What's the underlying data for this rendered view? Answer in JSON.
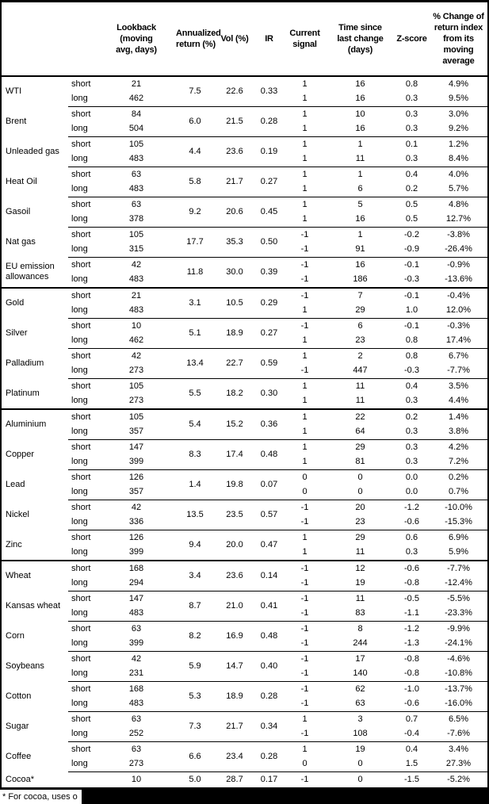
{
  "table": {
    "header": {
      "name": "",
      "pos": "",
      "lookback": "Lookback\n(moving\navg, days)",
      "annualized": "Annualized\nreturn (%)",
      "vol": "Vol (%)",
      "ir": "IR",
      "signal": "Current\nsignal",
      "time": "Time since\nlast change\n(days)",
      "zscore": "Z-score",
      "pct_change": "% Change of\nreturn index\nfrom its\nmoving\naverage"
    },
    "commodities": [
      {
        "name": "WTI",
        "section_start": false,
        "annualized": "7.5",
        "vol": "22.6",
        "ir": "0.33",
        "rows": [
          {
            "pos": "short",
            "lookback": "21",
            "signal": "1",
            "time": "16",
            "zscore": "0.8",
            "pct": "4.9%"
          },
          {
            "pos": "long",
            "lookback": "462",
            "signal": "1",
            "time": "16",
            "zscore": "0.3",
            "pct": "9.5%"
          }
        ]
      },
      {
        "name": "Brent",
        "section_start": false,
        "annualized": "6.0",
        "vol": "21.5",
        "ir": "0.28",
        "rows": [
          {
            "pos": "short",
            "lookback": "84",
            "signal": "1",
            "time": "10",
            "zscore": "0.3",
            "pct": "3.0%"
          },
          {
            "pos": "long",
            "lookback": "504",
            "signal": "1",
            "time": "16",
            "zscore": "0.3",
            "pct": "9.2%"
          }
        ]
      },
      {
        "name": "Unleaded gas",
        "section_start": false,
        "annualized": "4.4",
        "vol": "23.6",
        "ir": "0.19",
        "rows": [
          {
            "pos": "short",
            "lookback": "105",
            "signal": "1",
            "time": "1",
            "zscore": "0.1",
            "pct": "1.2%"
          },
          {
            "pos": "long",
            "lookback": "483",
            "signal": "1",
            "time": "11",
            "zscore": "0.3",
            "pct": "8.4%"
          }
        ]
      },
      {
        "name": "Heat Oil",
        "section_start": false,
        "annualized": "5.8",
        "vol": "21.7",
        "ir": "0.27",
        "rows": [
          {
            "pos": "short",
            "lookback": "63",
            "signal": "1",
            "time": "1",
            "zscore": "0.4",
            "pct": "4.0%"
          },
          {
            "pos": "long",
            "lookback": "483",
            "signal": "1",
            "time": "6",
            "zscore": "0.2",
            "pct": "5.7%"
          }
        ]
      },
      {
        "name": "Gasoil",
        "section_start": false,
        "annualized": "9.2",
        "vol": "20.6",
        "ir": "0.45",
        "rows": [
          {
            "pos": "short",
            "lookback": "63",
            "signal": "1",
            "time": "5",
            "zscore": "0.5",
            "pct": "4.8%"
          },
          {
            "pos": "long",
            "lookback": "378",
            "signal": "1",
            "time": "16",
            "zscore": "0.5",
            "pct": "12.7%"
          }
        ]
      },
      {
        "name": "Nat gas",
        "section_start": false,
        "annualized": "17.7",
        "vol": "35.3",
        "ir": "0.50",
        "rows": [
          {
            "pos": "short",
            "lookback": "105",
            "signal": "-1",
            "time": "1",
            "zscore": "-0.2",
            "pct": "-3.8%"
          },
          {
            "pos": "long",
            "lookback": "315",
            "signal": "-1",
            "time": "91",
            "zscore": "-0.9",
            "pct": "-26.4%"
          }
        ]
      },
      {
        "name": "EU emission allowances",
        "section_start": false,
        "annualized": "11.8",
        "vol": "30.0",
        "ir": "0.39",
        "rows": [
          {
            "pos": "short",
            "lookback": "42",
            "signal": "-1",
            "time": "16",
            "zscore": "-0.1",
            "pct": "-0.9%"
          },
          {
            "pos": "long",
            "lookback": "483",
            "signal": "-1",
            "time": "186",
            "zscore": "-0.3",
            "pct": "-13.6%"
          }
        ]
      },
      {
        "name": "Gold",
        "section_start": true,
        "annualized": "3.1",
        "vol": "10.5",
        "ir": "0.29",
        "rows": [
          {
            "pos": "short",
            "lookback": "21",
            "signal": "-1",
            "time": "7",
            "zscore": "-0.1",
            "pct": "-0.4%"
          },
          {
            "pos": "long",
            "lookback": "483",
            "signal": "1",
            "time": "29",
            "zscore": "1.0",
            "pct": "12.0%"
          }
        ]
      },
      {
        "name": "Silver",
        "section_start": false,
        "annualized": "5.1",
        "vol": "18.9",
        "ir": "0.27",
        "rows": [
          {
            "pos": "short",
            "lookback": "10",
            "signal": "-1",
            "time": "6",
            "zscore": "-0.1",
            "pct": "-0.3%"
          },
          {
            "pos": "long",
            "lookback": "462",
            "signal": "1",
            "time": "23",
            "zscore": "0.8",
            "pct": "17.4%"
          }
        ]
      },
      {
        "name": "Palladium",
        "section_start": false,
        "annualized": "13.4",
        "vol": "22.7",
        "ir": "0.59",
        "rows": [
          {
            "pos": "short",
            "lookback": "42",
            "signal": "1",
            "time": "2",
            "zscore": "0.8",
            "pct": "6.7%"
          },
          {
            "pos": "long",
            "lookback": "273",
            "signal": "-1",
            "time": "447",
            "zscore": "-0.3",
            "pct": "-7.7%"
          }
        ]
      },
      {
        "name": "Platinum",
        "section_start": false,
        "annualized": "5.5",
        "vol": "18.2",
        "ir": "0.30",
        "rows": [
          {
            "pos": "short",
            "lookback": "105",
            "signal": "1",
            "time": "11",
            "zscore": "0.4",
            "pct": "3.5%"
          },
          {
            "pos": "long",
            "lookback": "273",
            "signal": "1",
            "time": "11",
            "zscore": "0.3",
            "pct": "4.4%"
          }
        ]
      },
      {
        "name": "Aluminium",
        "section_start": true,
        "annualized": "5.4",
        "vol": "15.2",
        "ir": "0.36",
        "rows": [
          {
            "pos": "short",
            "lookback": "105",
            "signal": "1",
            "time": "22",
            "zscore": "0.2",
            "pct": "1.4%"
          },
          {
            "pos": "long",
            "lookback": "357",
            "signal": "1",
            "time": "64",
            "zscore": "0.3",
            "pct": "3.8%"
          }
        ]
      },
      {
        "name": "Copper",
        "section_start": false,
        "annualized": "8.3",
        "vol": "17.4",
        "ir": "0.48",
        "rows": [
          {
            "pos": "short",
            "lookback": "147",
            "signal": "1",
            "time": "29",
            "zscore": "0.3",
            "pct": "4.2%"
          },
          {
            "pos": "long",
            "lookback": "399",
            "signal": "1",
            "time": "81",
            "zscore": "0.3",
            "pct": "7.2%"
          }
        ]
      },
      {
        "name": "Lead",
        "section_start": false,
        "annualized": "1.4",
        "vol": "19.8",
        "ir": "0.07",
        "rows": [
          {
            "pos": "short",
            "lookback": "126",
            "signal": "0",
            "time": "0",
            "zscore": "0.0",
            "pct": "0.2%"
          },
          {
            "pos": "long",
            "lookback": "357",
            "signal": "0",
            "time": "0",
            "zscore": "0.0",
            "pct": "0.7%"
          }
        ]
      },
      {
        "name": "Nickel",
        "section_start": false,
        "annualized": "13.5",
        "vol": "23.5",
        "ir": "0.57",
        "rows": [
          {
            "pos": "short",
            "lookback": "42",
            "signal": "-1",
            "time": "20",
            "zscore": "-1.2",
            "pct": "-10.0%"
          },
          {
            "pos": "long",
            "lookback": "336",
            "signal": "-1",
            "time": "23",
            "zscore": "-0.6",
            "pct": "-15.3%"
          }
        ]
      },
      {
        "name": "Zinc",
        "section_start": false,
        "annualized": "9.4",
        "vol": "20.0",
        "ir": "0.47",
        "rows": [
          {
            "pos": "short",
            "lookback": "126",
            "signal": "1",
            "time": "29",
            "zscore": "0.6",
            "pct": "6.9%"
          },
          {
            "pos": "long",
            "lookback": "399",
            "signal": "1",
            "time": "11",
            "zscore": "0.3",
            "pct": "5.9%"
          }
        ]
      },
      {
        "name": "Wheat",
        "section_start": true,
        "annualized": "3.4",
        "vol": "23.6",
        "ir": "0.14",
        "rows": [
          {
            "pos": "short",
            "lookback": "168",
            "signal": "-1",
            "time": "12",
            "zscore": "-0.6",
            "pct": "-7.7%"
          },
          {
            "pos": "long",
            "lookback": "294",
            "signal": "-1",
            "time": "19",
            "zscore": "-0.8",
            "pct": "-12.4%"
          }
        ]
      },
      {
        "name": "Kansas wheat",
        "section_start": false,
        "annualized": "8.7",
        "vol": "21.0",
        "ir": "0.41",
        "rows": [
          {
            "pos": "short",
            "lookback": "147",
            "signal": "-1",
            "time": "11",
            "zscore": "-0.5",
            "pct": "-5.5%"
          },
          {
            "pos": "long",
            "lookback": "483",
            "signal": "-1",
            "time": "83",
            "zscore": "-1.1",
            "pct": "-23.3%"
          }
        ]
      },
      {
        "name": "Corn",
        "section_start": false,
        "annualized": "8.2",
        "vol": "16.9",
        "ir": "0.48",
        "rows": [
          {
            "pos": "short",
            "lookback": "63",
            "signal": "-1",
            "time": "8",
            "zscore": "-1.2",
            "pct": "-9.9%"
          },
          {
            "pos": "long",
            "lookback": "399",
            "signal": "-1",
            "time": "244",
            "zscore": "-1.3",
            "pct": "-24.1%"
          }
        ]
      },
      {
        "name": "Soybeans",
        "section_start": false,
        "annualized": "5.9",
        "vol": "14.7",
        "ir": "0.40",
        "rows": [
          {
            "pos": "short",
            "lookback": "42",
            "signal": "-1",
            "time": "17",
            "zscore": "-0.8",
            "pct": "-4.6%"
          },
          {
            "pos": "long",
            "lookback": "231",
            "signal": "-1",
            "time": "140",
            "zscore": "-0.8",
            "pct": "-10.8%"
          }
        ]
      },
      {
        "name": "Cotton",
        "section_start": false,
        "annualized": "5.3",
        "vol": "18.9",
        "ir": "0.28",
        "rows": [
          {
            "pos": "short",
            "lookback": "168",
            "signal": "-1",
            "time": "62",
            "zscore": "-1.0",
            "pct": "-13.7%"
          },
          {
            "pos": "long",
            "lookback": "483",
            "signal": "-1",
            "time": "63",
            "zscore": "-0.6",
            "pct": "-16.0%"
          }
        ]
      },
      {
        "name": "Sugar",
        "section_start": false,
        "annualized": "7.3",
        "vol": "21.7",
        "ir": "0.34",
        "rows": [
          {
            "pos": "short",
            "lookback": "63",
            "signal": "1",
            "time": "3",
            "zscore": "0.7",
            "pct": "6.5%"
          },
          {
            "pos": "long",
            "lookback": "252",
            "signal": "-1",
            "time": "108",
            "zscore": "-0.4",
            "pct": "-7.6%"
          }
        ]
      },
      {
        "name": "Coffee",
        "section_start": false,
        "annualized": "6.6",
        "vol": "23.4",
        "ir": "0.28",
        "rows": [
          {
            "pos": "short",
            "lookback": "63",
            "signal": "1",
            "time": "19",
            "zscore": "0.4",
            "pct": "3.4%"
          },
          {
            "pos": "long",
            "lookback": "273",
            "signal": "0",
            "time": "0",
            "zscore": "1.5",
            "pct": "27.3%"
          }
        ]
      },
      {
        "name": "Cocoa*",
        "section_start": false,
        "annualized": "5.0",
        "vol": "28.7",
        "ir": "0.17",
        "rows": [
          {
            "pos": "",
            "lookback": "10",
            "signal": "-1",
            "time": "0",
            "zscore": "-1.5",
            "pct": "-5.2%"
          }
        ]
      }
    ]
  },
  "footnote": {
    "visible_text": "* For cocoa, uses o"
  },
  "colors": {
    "border": "#000000",
    "background": "#ffffff",
    "text": "#000000",
    "redaction": "#000000"
  }
}
